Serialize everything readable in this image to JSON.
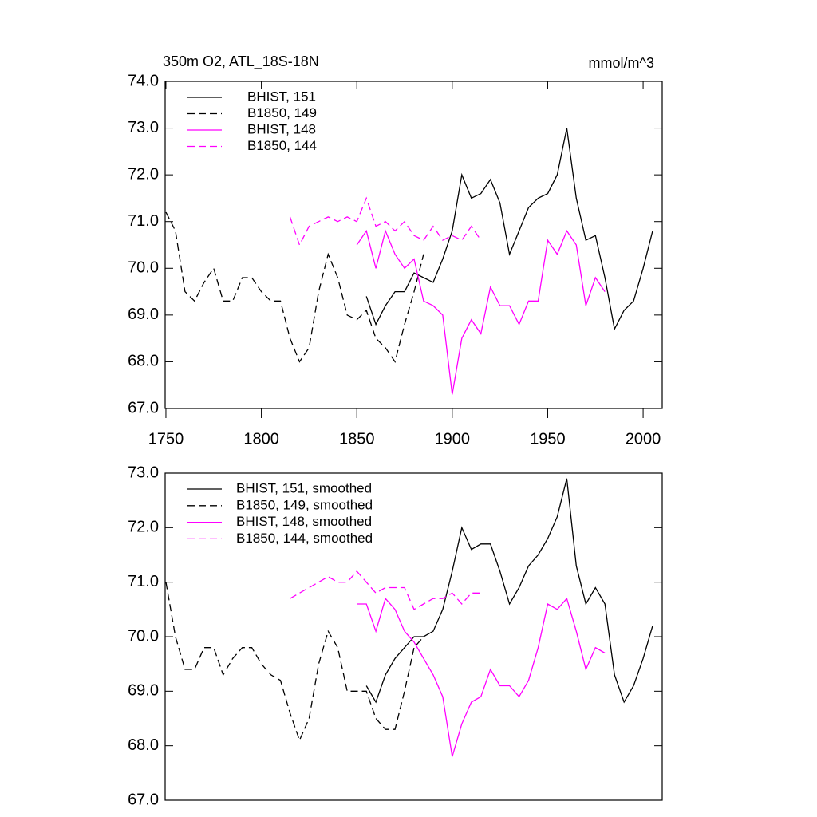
{
  "chart_data": [
    {
      "type": "line",
      "title": "350m O2, ATL_18S-18N",
      "units": "mmol/m^3",
      "x": [
        1750,
        1755,
        1760,
        1765,
        1770,
        1775,
        1780,
        1785,
        1790,
        1795,
        1800,
        1805,
        1810,
        1815,
        1820,
        1825,
        1830,
        1835,
        1840,
        1845,
        1850,
        1855,
        1860,
        1865,
        1870,
        1875,
        1880,
        1885,
        1890,
        1895,
        1900,
        1905,
        1910,
        1915,
        1920,
        1925,
        1930,
        1935,
        1940,
        1945,
        1950,
        1955,
        1960,
        1965,
        1970,
        1975,
        1980,
        1985,
        1990,
        1995,
        2000,
        2005
      ],
      "xlim": [
        1749.6,
        2010
      ],
      "xticks": [
        1750,
        1800,
        1850,
        1900,
        1950,
        2000
      ],
      "ylim": [
        67,
        74
      ],
      "yticks": [
        {
          "value": 67,
          "label": "67.0"
        },
        {
          "value": 68,
          "label": "68.0"
        },
        {
          "value": 69,
          "label": "69.0"
        },
        {
          "value": 70,
          "label": "70.0"
        },
        {
          "value": 71,
          "label": "71.0"
        },
        {
          "value": 72,
          "label": "72.0"
        },
        {
          "value": 73,
          "label": "73.0"
        },
        {
          "value": 74,
          "label": "74.0"
        }
      ],
      "legend": "upper left",
      "series": [
        {
          "name": "BHIST, 151",
          "color": "#000000",
          "dashed": false,
          "values": [
            null,
            null,
            null,
            null,
            null,
            null,
            null,
            null,
            null,
            null,
            null,
            null,
            null,
            null,
            null,
            null,
            null,
            null,
            null,
            null,
            null,
            69.4,
            68.8,
            69.2,
            69.5,
            69.5,
            69.9,
            69.8,
            69.7,
            70.2,
            70.8,
            72.0,
            71.5,
            71.6,
            71.9,
            71.4,
            70.3,
            70.8,
            71.3,
            71.5,
            71.6,
            72.0,
            73.0,
            71.5,
            70.6,
            70.7,
            69.8,
            68.7,
            69.1,
            69.3,
            70.0,
            70.8
          ]
        },
        {
          "name": "B1850, 149",
          "color": "#000000",
          "dashed": true,
          "values": [
            71.2,
            70.8,
            69.5,
            69.3,
            69.7,
            70.0,
            69.3,
            69.3,
            69.8,
            69.8,
            69.5,
            69.3,
            69.3,
            68.5,
            68.0,
            68.3,
            69.5,
            70.3,
            69.8,
            69.0,
            68.9,
            69.1,
            68.5,
            68.3,
            68.0,
            68.8,
            69.5,
            70.3,
            null,
            null,
            null,
            null,
            null,
            null,
            null,
            null,
            null,
            null,
            null,
            null,
            null,
            null,
            null,
            null,
            null,
            null,
            null,
            null,
            null,
            null,
            null,
            null
          ]
        },
        {
          "name": "BHIST, 148",
          "color": "#ff00ff",
          "dashed": false,
          "values": [
            null,
            null,
            null,
            null,
            null,
            null,
            null,
            null,
            null,
            null,
            null,
            null,
            null,
            null,
            null,
            null,
            null,
            null,
            null,
            null,
            70.5,
            70.8,
            70.0,
            70.8,
            70.3,
            70.0,
            70.2,
            69.3,
            69.2,
            69.0,
            67.3,
            68.5,
            68.9,
            68.6,
            69.6,
            69.2,
            69.2,
            68.8,
            69.3,
            69.3,
            70.6,
            70.3,
            70.8,
            70.5,
            69.2,
            69.8,
            69.5,
            null,
            null,
            null,
            null,
            null
          ]
        },
        {
          "name": "B1850, 144",
          "color": "#ff00ff",
          "dashed": true,
          "values": [
            null,
            null,
            null,
            null,
            null,
            null,
            null,
            null,
            null,
            null,
            null,
            null,
            null,
            71.1,
            70.5,
            70.9,
            71.0,
            71.1,
            71.0,
            71.1,
            71.0,
            71.5,
            70.9,
            71.0,
            70.8,
            71.0,
            70.7,
            70.6,
            70.9,
            70.6,
            70.7,
            70.6,
            70.9,
            70.6,
            null,
            null,
            null,
            null,
            null,
            null,
            null,
            null,
            null,
            null,
            null,
            null,
            null,
            null,
            null,
            null,
            null,
            null
          ]
        }
      ]
    },
    {
      "type": "line",
      "x": [
        1750,
        1755,
        1760,
        1765,
        1770,
        1775,
        1780,
        1785,
        1790,
        1795,
        1800,
        1805,
        1810,
        1815,
        1820,
        1825,
        1830,
        1835,
        1840,
        1845,
        1850,
        1855,
        1860,
        1865,
        1870,
        1875,
        1880,
        1885,
        1890,
        1895,
        1900,
        1905,
        1910,
        1915,
        1920,
        1925,
        1930,
        1935,
        1940,
        1945,
        1950,
        1955,
        1960,
        1965,
        1970,
        1975,
        1980,
        1985,
        1990,
        1995,
        2000,
        2005
      ],
      "xlim": [
        1749.6,
        2010
      ],
      "ylim": [
        67,
        73
      ],
      "yticks": [
        {
          "value": 67,
          "label": "67.0"
        },
        {
          "value": 68,
          "label": "68.0"
        },
        {
          "value": 69,
          "label": "69.0"
        },
        {
          "value": 70,
          "label": "70.0"
        },
        {
          "value": 71,
          "label": "71.0"
        },
        {
          "value": 72,
          "label": "72.0"
        },
        {
          "value": 73,
          "label": "73.0"
        }
      ],
      "legend": "upper left",
      "series": [
        {
          "name": "BHIST, 151, smoothed",
          "color": "#000000",
          "dashed": false,
          "values": [
            null,
            null,
            null,
            null,
            null,
            null,
            null,
            null,
            null,
            null,
            null,
            null,
            null,
            null,
            null,
            null,
            null,
            null,
            null,
            null,
            null,
            69.1,
            68.8,
            69.3,
            69.6,
            69.8,
            70.0,
            70.0,
            70.1,
            70.5,
            71.2,
            72.0,
            71.6,
            71.7,
            71.7,
            71.2,
            70.6,
            70.9,
            71.3,
            71.5,
            71.8,
            72.2,
            72.9,
            71.3,
            70.6,
            70.9,
            70.6,
            69.3,
            68.8,
            69.1,
            69.6,
            70.2
          ]
        },
        {
          "name": "B1850, 149, smoothed",
          "color": "#000000",
          "dashed": true,
          "values": [
            71.0,
            70.0,
            69.4,
            69.4,
            69.8,
            69.8,
            69.3,
            69.6,
            69.8,
            69.8,
            69.5,
            69.3,
            69.2,
            68.6,
            68.1,
            68.5,
            69.5,
            70.1,
            69.8,
            69.0,
            69.0,
            69.0,
            68.5,
            68.3,
            68.3,
            69.0,
            69.8,
            70.0,
            null,
            null,
            null,
            null,
            null,
            null,
            null,
            null,
            null,
            null,
            null,
            null,
            null,
            null,
            null,
            null,
            null,
            null,
            null,
            null,
            null,
            null,
            null,
            null
          ]
        },
        {
          "name": "BHIST, 148, smoothed",
          "color": "#ff00ff",
          "dashed": false,
          "values": [
            null,
            null,
            null,
            null,
            null,
            null,
            null,
            null,
            null,
            null,
            null,
            null,
            null,
            null,
            null,
            null,
            null,
            null,
            null,
            null,
            70.6,
            70.6,
            70.1,
            70.7,
            70.5,
            70.1,
            69.9,
            69.6,
            69.3,
            68.9,
            67.8,
            68.4,
            68.8,
            68.9,
            69.4,
            69.1,
            69.1,
            68.9,
            69.2,
            69.8,
            70.6,
            70.5,
            70.7,
            70.1,
            69.4,
            69.8,
            69.7,
            null,
            null,
            null,
            null,
            null
          ]
        },
        {
          "name": "B1850, 144, smoothed",
          "color": "#ff00ff",
          "dashed": true,
          "values": [
            null,
            null,
            null,
            null,
            null,
            null,
            null,
            null,
            null,
            null,
            null,
            null,
            null,
            70.7,
            70.8,
            70.9,
            71.0,
            71.1,
            71.0,
            71.0,
            71.2,
            71.0,
            70.8,
            70.9,
            70.9,
            70.9,
            70.5,
            70.6,
            70.7,
            70.7,
            70.8,
            70.6,
            70.8,
            70.8,
            null,
            null,
            null,
            null,
            null,
            null,
            null,
            null,
            null,
            null,
            null,
            null,
            null,
            null,
            null,
            null,
            null,
            null
          ]
        }
      ]
    }
  ]
}
